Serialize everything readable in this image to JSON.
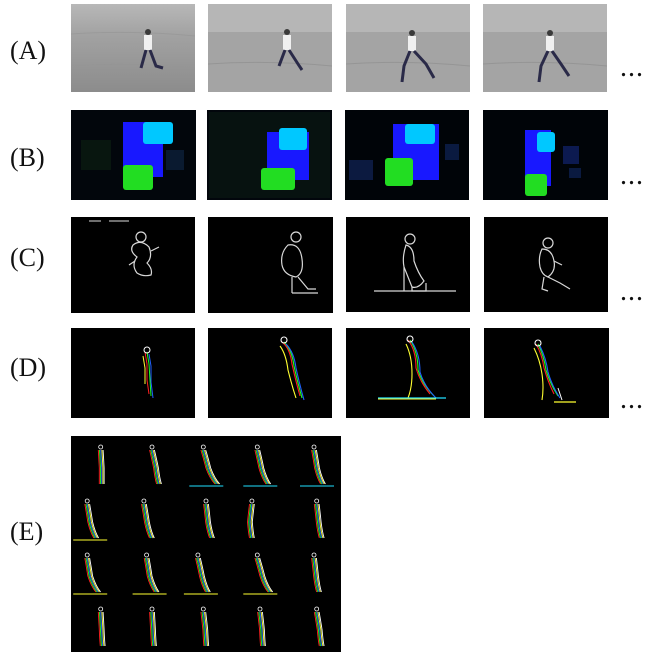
{
  "rows": [
    {
      "id": "A",
      "label": "(A)",
      "ellipsis": "..."
    },
    {
      "id": "B",
      "label": "(B)",
      "ellipsis": "..."
    },
    {
      "id": "C",
      "label": "(C)",
      "ellipsis": "..."
    },
    {
      "id": "D",
      "label": "(D)",
      "ellipsis": "..."
    },
    {
      "id": "E",
      "label": "(E)"
    }
  ],
  "colors": {
    "background_frame": "#000000",
    "photo_ground": "#9a9a9a",
    "flow_blue": "#1a1aff",
    "flow_cyan": "#00ccff",
    "flow_green": "#22dd22",
    "contour": "#e8e8e8",
    "multi_red": "#ff2020",
    "multi_green": "#20ff20",
    "multi_blue": "#2060ff",
    "multi_yellow": "#ffff30"
  },
  "grid_e": {
    "rows": 4,
    "cols": 5
  }
}
